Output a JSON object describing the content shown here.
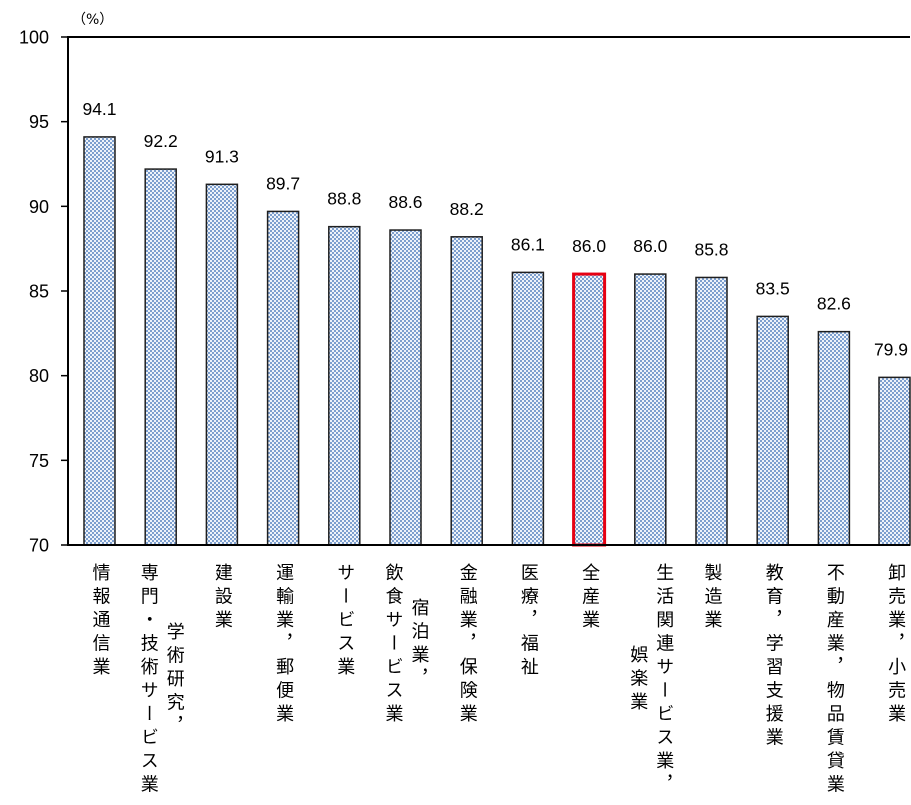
{
  "chart_data": {
    "type": "bar",
    "ylabel": "（%）",
    "ylim": [
      70,
      100
    ],
    "yticks": [
      70,
      75,
      80,
      85,
      90,
      95,
      100
    ],
    "grid": false,
    "legend": false,
    "categories": [
      "情報通信業",
      "学術研究，\n専門・技術サービス業",
      "建設業",
      "運輸業，郵便業",
      "サービス業",
      "宿泊業，\n飲食サービス業",
      "金融業，保険業",
      "医療，福祉",
      "全産業",
      "生活関連サービス業，\n娯楽業",
      "製造業",
      "教育，学習支援業",
      "不動産業，物品賃貸業",
      "卸売業，小売業"
    ],
    "values": [
      94.1,
      92.2,
      91.3,
      89.7,
      88.8,
      88.6,
      88.2,
      86.1,
      86.0,
      86.0,
      85.8,
      83.5,
      82.6,
      79.9
    ],
    "highlight_index": 8,
    "colors": {
      "bar_pattern": "#7d9fce",
      "bar_background": "#eef3fa",
      "bar_edge": "#1f1f1f",
      "highlight_edge": "#e60012",
      "axis": "#000000"
    }
  }
}
